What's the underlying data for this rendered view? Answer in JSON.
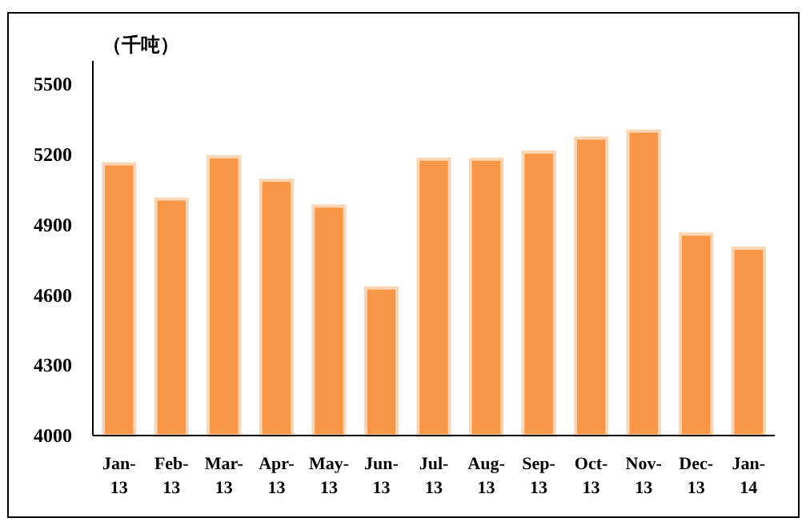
{
  "chart_data": {
    "type": "bar",
    "ylabel": "（千吨）",
    "categories": [
      "Jan-13",
      "Feb-13",
      "Mar-13",
      "Apr-13",
      "May-13",
      "Jun-13",
      "Jul-13",
      "Aug-13",
      "Sep-13",
      "Oct-13",
      "Nov-13",
      "Dec-13",
      "Jan-14"
    ],
    "values": [
      5160,
      5010,
      5190,
      5090,
      4980,
      4630,
      5180,
      5180,
      5210,
      5270,
      5300,
      4860,
      4800
    ],
    "color": "#f79646",
    "ylim": [
      4000,
      5600
    ],
    "yticks": [
      4000,
      4300,
      4600,
      4900,
      5200,
      5500
    ],
    "grid": false
  }
}
